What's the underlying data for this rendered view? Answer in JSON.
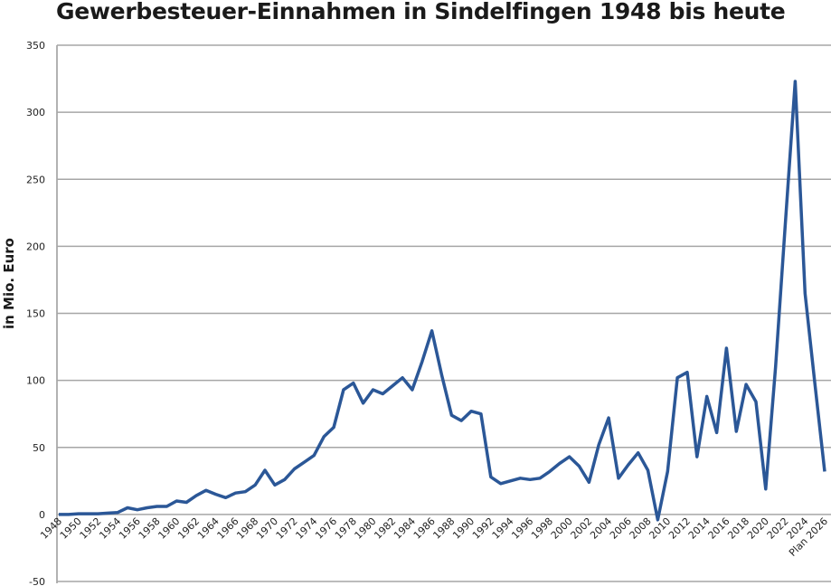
{
  "chart_data": {
    "type": "line",
    "title": "Gewerbesteuer-Einnahmen in Sindelfingen 1948 bis heute",
    "xlabel": "",
    "ylabel": "in Mio. Euro",
    "ylim": [
      -50,
      350
    ],
    "yticks": [
      -50,
      0,
      50,
      100,
      150,
      200,
      250,
      300,
      350
    ],
    "grid": true,
    "legend": "none",
    "line_color": "#2b5797",
    "categories": [
      "1948",
      "1949",
      "1950",
      "1951",
      "1952",
      "1953",
      "1954",
      "1955",
      "1956",
      "1957",
      "1958",
      "1959",
      "1960",
      "1961",
      "1962",
      "1963",
      "1964",
      "1965",
      "1966",
      "1967",
      "1968",
      "1969",
      "1970",
      "1971",
      "1972",
      "1973",
      "1974",
      "1975",
      "1976",
      "1977",
      "1978",
      "1979",
      "1980",
      "1981",
      "1982",
      "1983",
      "1984",
      "1985",
      "1986",
      "1987",
      "1988",
      "1989",
      "1990",
      "1991",
      "1992",
      "1993",
      "1994",
      "1995",
      "1996",
      "1997",
      "1998",
      "1999",
      "2000",
      "2001",
      "2002",
      "2003",
      "2004",
      "2005",
      "2006",
      "2007",
      "2008",
      "2009",
      "2010",
      "2011",
      "2012",
      "2013",
      "2014",
      "2015",
      "2016",
      "2017",
      "2018",
      "2019",
      "2020",
      "2021",
      "2022",
      "2023",
      "2024",
      "2025",
      "Plan 2026"
    ],
    "tick_labels": [
      "1948",
      "1950",
      "1952",
      "1954",
      "1956",
      "1958",
      "1960",
      "1962",
      "1964",
      "1966",
      "1968",
      "1970",
      "1972",
      "1974",
      "1976",
      "1978",
      "1980",
      "1982",
      "1984",
      "1986",
      "1988",
      "1990",
      "1992",
      "1994",
      "1996",
      "1998",
      "2000",
      "2002",
      "2004",
      "2006",
      "2008",
      "2010",
      "2012",
      "2014",
      "2016",
      "2018",
      "2020",
      "2022",
      "2024",
      "Plan 2026"
    ],
    "series": [
      {
        "name": "Gewerbesteuer",
        "values": [
          0,
          0,
          0.5,
          0.5,
          0.5,
          1,
          1.5,
          5,
          3.5,
          5,
          6,
          6,
          10,
          9,
          14,
          18,
          15,
          12.5,
          16,
          17,
          22,
          33,
          22,
          26,
          34,
          39,
          44,
          58,
          65,
          93,
          98,
          83,
          93,
          90,
          96,
          102,
          93,
          114,
          137,
          104,
          74,
          70,
          77,
          75,
          28,
          23,
          25,
          27,
          26,
          27,
          32,
          38,
          43,
          36,
          24,
          52,
          72,
          27,
          37,
          46,
          33,
          -4,
          32,
          102,
          106,
          43,
          88,
          61,
          124,
          62,
          97,
          84,
          19,
          110,
          218,
          323,
          165,
          98,
          32
        ]
      }
    ]
  }
}
